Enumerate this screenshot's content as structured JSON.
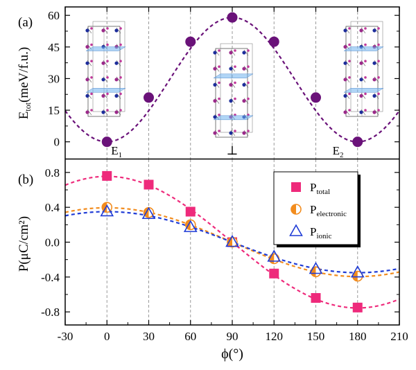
{
  "chart_data": [
    {
      "type": "scatter",
      "panel_label": "(a)",
      "ylabel_main": "E",
      "ylabel_sub": "tot",
      "ylabel_rest": "(meV/f.u.)",
      "xlim": [
        -30,
        210
      ],
      "ylim": [
        -8,
        64
      ],
      "yticks": [
        0,
        15,
        30,
        45,
        60
      ],
      "grid_vertical": [
        0,
        30,
        60,
        90,
        120,
        150,
        180
      ],
      "colors": {
        "points": "#6a1279",
        "curve": "#6a1279"
      },
      "points": [
        {
          "x": 0,
          "y": 0
        },
        {
          "x": 30,
          "y": 21
        },
        {
          "x": 60,
          "y": 47.5
        },
        {
          "x": 90,
          "y": 59
        },
        {
          "x": 120,
          "y": 47.5
        },
        {
          "x": 150,
          "y": 21
        },
        {
          "x": 180,
          "y": 0
        }
      ],
      "annotations": {
        "e1": {
          "main": "E",
          "sub": "1"
        },
        "perp": "⊥",
        "e2": {
          "main": "E",
          "sub": "2"
        }
      },
      "crystal_insets": [
        "left",
        "center",
        "right"
      ]
    },
    {
      "type": "line",
      "panel_label": "(b)",
      "ylabel": "P(μC/cm²)",
      "xlabel": "ϕ(°)",
      "xlim": [
        -30,
        210
      ],
      "ylim": [
        -0.95,
        0.95
      ],
      "xticks": [
        -30,
        0,
        30,
        60,
        90,
        120,
        150,
        180,
        210
      ],
      "yticks": [
        "0.8",
        "0.4",
        "0.0",
        "-0.4",
        "-0.8"
      ],
      "grid_vertical": [
        0,
        30,
        60,
        90,
        120,
        150,
        180
      ],
      "x": [
        0,
        30,
        60,
        90,
        120,
        150,
        180
      ],
      "series": [
        {
          "name": "P",
          "name_sub": "total",
          "marker": "square",
          "color": "#ee2a7b",
          "values": [
            0.76,
            0.66,
            0.35,
            0.0,
            -0.36,
            -0.64,
            -0.75
          ]
        },
        {
          "name": "P",
          "name_sub": "electronic",
          "marker": "half-circle",
          "color": "#f28c1e",
          "values": [
            0.4,
            0.34,
            0.2,
            0.0,
            -0.19,
            -0.34,
            -0.39
          ]
        },
        {
          "name": "P",
          "name_sub": "ionic",
          "marker": "triangle",
          "color": "#1f3bd6",
          "values": [
            0.35,
            0.32,
            0.17,
            0.0,
            -0.17,
            -0.31,
            -0.35
          ]
        }
      ],
      "legend_position": "top-right"
    }
  ]
}
